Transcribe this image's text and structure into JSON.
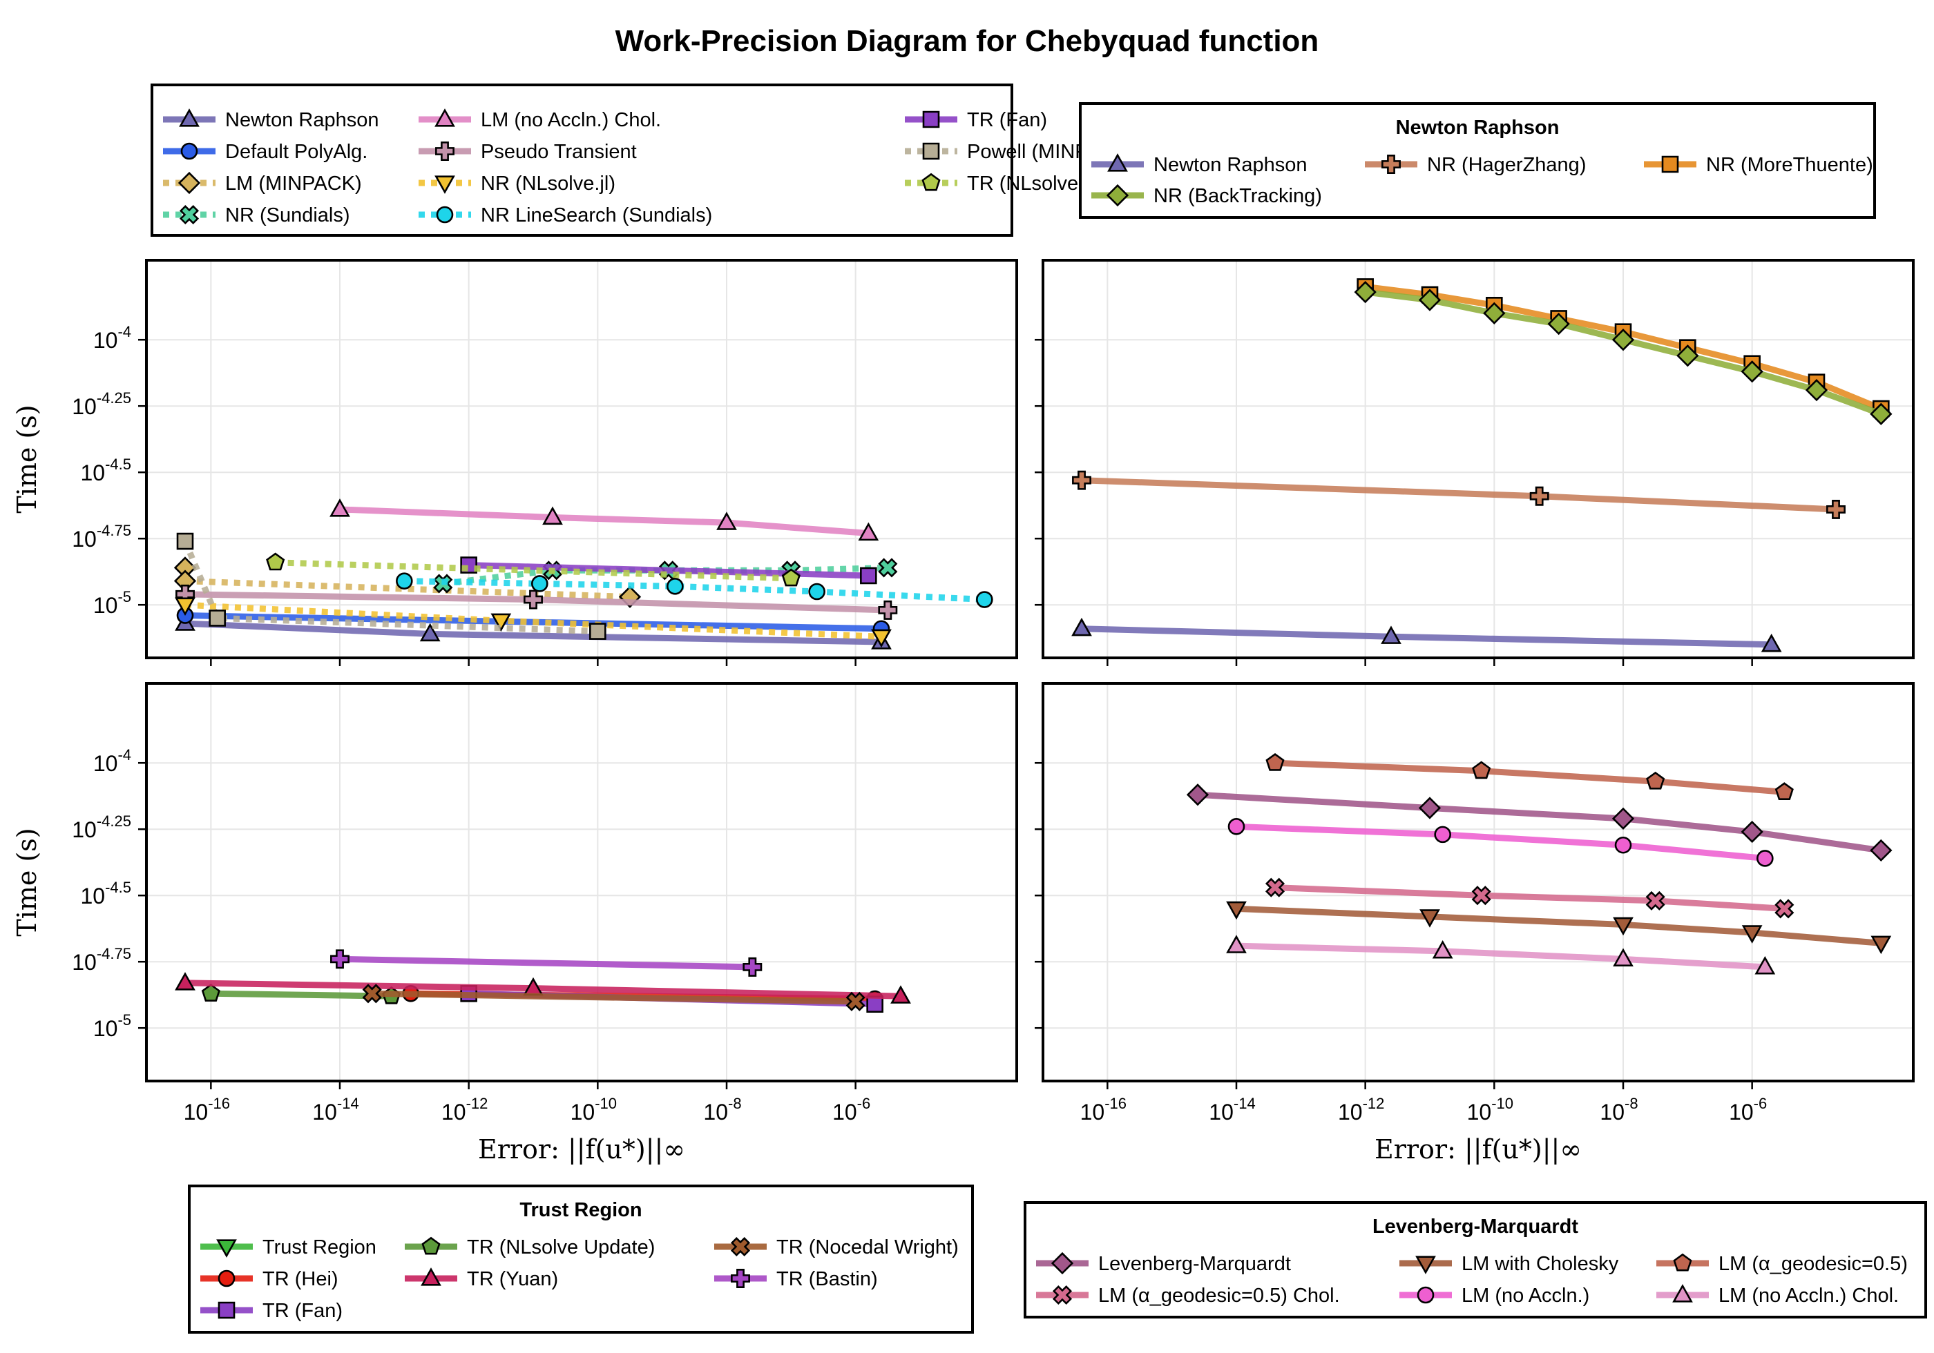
{
  "title": "Work-Precision Diagram for Chebyquad function",
  "axes": {
    "xlabel": "Error: ||f(u*)||∞",
    "ylabel": "Time (s)",
    "xscale": "log10",
    "yscale": "log10",
    "xlim_exp": [
      -17,
      -3.5
    ],
    "ylim_exp": [
      -5.2,
      -3.7
    ],
    "xticks_exp": [
      -16,
      -14,
      -12,
      -10,
      -8,
      -6
    ],
    "yticks_exp": [
      -5,
      -4.75,
      -4.5,
      -4.25,
      -4
    ],
    "xtick_labels": [
      "-16",
      "-14",
      "-12",
      "-10",
      "-8",
      "-6"
    ],
    "ytick_labels": [
      "-5",
      "-4.75",
      "-4.5",
      "-4.25",
      "-4"
    ],
    "grid": true
  },
  "legends": {
    "main": {
      "title": "",
      "entries": [
        "Newton Raphson",
        "Default PolyAlg.",
        "LM (MINPACK)",
        "NR (Sundials)",
        "LM (no Accln.) Chol.",
        "Pseudo Transient",
        "NR (NLsolve.jl)",
        "NR LineSearch (Sundials)",
        "TR (Fan)",
        "Powell (MINPACK)",
        "TR (NLsolve.jl)"
      ]
    },
    "newton": {
      "title": "Newton Raphson",
      "entries": [
        "Newton Raphson",
        "NR (HagerZhang)",
        "NR (MoreThuente)",
        "NR (BackTracking)"
      ]
    },
    "trust": {
      "title": "Trust Region",
      "entries": [
        "Trust Region",
        "TR (NLsolve Update)",
        "TR (Nocedal Wright)",
        "TR (Hei)",
        "TR (Yuan)",
        "TR (Bastin)",
        "TR (Fan)"
      ]
    },
    "lm": {
      "title": "Levenberg-Marquardt",
      "entries": [
        "Levenberg-Marquardt",
        "LM with Cholesky",
        "LM (α_geodesic=0.5)",
        "LM (α_geodesic=0.5) Chol.",
        "LM (no Accln.)",
        "LM (no Accln.) Chol."
      ]
    }
  },
  "chart_data": [
    {
      "type": "line",
      "panel": "top-left",
      "xscale": "log10",
      "yscale": "log10",
      "xlim": [
        "1e-17",
        "3e-4"
      ],
      "ylim": [
        "6.3e-6",
        "2e-4"
      ],
      "series": [
        {
          "name": "Newton Raphson",
          "color": "#6f68b0",
          "style": "solid",
          "marker": "triangle",
          "x_exp": [
            -16.4,
            -12.6,
            -5.6
          ],
          "y_exp": [
            -5.07,
            -5.11,
            -5.14
          ]
        },
        {
          "name": "Default PolyAlg.",
          "color": "#2b5ce6",
          "style": "solid",
          "marker": "circle",
          "x_exp": [
            -16.4,
            -5.6
          ],
          "y_exp": [
            -5.04,
            -5.09
          ]
        },
        {
          "name": "LM (MINPACK)",
          "color": "#d6b35c",
          "style": "dotted",
          "marker": "diamond",
          "x_exp": [
            -16.4,
            -16.4,
            -9.5
          ],
          "y_exp": [
            -4.86,
            -4.91,
            -4.97
          ]
        },
        {
          "name": "NR (Sundials)",
          "color": "#4fcf9d",
          "style": "dotted",
          "marker": "cross",
          "x_exp": [
            -12.4,
            -10.7,
            -8.9,
            -7.0,
            -5.5
          ],
          "y_exp": [
            -4.92,
            -4.87,
            -4.87,
            -4.87,
            -4.86
          ]
        },
        {
          "name": "LM (no Accln.) Chol.",
          "color": "#e183c3",
          "style": "solid",
          "marker": "triangle",
          "x_exp": [
            -14.0,
            -10.7,
            -8.0,
            -5.8
          ],
          "y_exp": [
            -4.64,
            -4.67,
            -4.69,
            -4.73
          ]
        },
        {
          "name": "Pseudo Transient",
          "color": "#c392aa",
          "style": "solid",
          "marker": "plus",
          "x_exp": [
            -16.4,
            -11.0,
            -5.5
          ],
          "y_exp": [
            -4.96,
            -4.98,
            -5.02
          ]
        },
        {
          "name": "NR (NLsolve.jl)",
          "color": "#f2c230",
          "style": "dotted",
          "marker": "inv-triangle",
          "x_exp": [
            -16.4,
            -11.5,
            -5.6
          ],
          "y_exp": [
            -5.0,
            -5.06,
            -5.12
          ]
        },
        {
          "name": "NR LineSearch (Sundials)",
          "color": "#1ed4ea",
          "style": "dotted",
          "marker": "circle",
          "x_exp": [
            -13.0,
            -10.9,
            -8.8,
            -6.6,
            -4.0
          ],
          "y_exp": [
            -4.91,
            -4.92,
            -4.93,
            -4.95,
            -4.98
          ]
        },
        {
          "name": "TR (Fan)",
          "color": "#8a3fc4",
          "style": "solid",
          "marker": "square",
          "x_exp": [
            -12.0,
            -5.8
          ],
          "y_exp": [
            -4.85,
            -4.89
          ]
        },
        {
          "name": "Powell (MINPACK)",
          "color": "#b6ad95",
          "style": "dotted",
          "marker": "square",
          "x_exp": [
            -16.4,
            -15.9,
            -10.0
          ],
          "y_exp": [
            -4.76,
            -5.05,
            -5.1
          ]
        },
        {
          "name": "TR (NLsolve.jl)",
          "color": "#b0c94a",
          "style": "dotted",
          "marker": "pentagon",
          "x_exp": [
            -15.0,
            -7.0
          ],
          "y_exp": [
            -4.84,
            -4.9
          ]
        }
      ]
    },
    {
      "type": "line",
      "panel": "top-right",
      "xscale": "log10",
      "yscale": "log10",
      "xlim": [
        "1e-17",
        "3e-4"
      ],
      "ylim": [
        "6.3e-6",
        "2e-4"
      ],
      "series": [
        {
          "name": "Newton Raphson",
          "color": "#6f68b0",
          "style": "solid",
          "marker": "triangle",
          "x_exp": [
            -16.4,
            -11.6,
            -5.7
          ],
          "y_exp": [
            -5.09,
            -5.12,
            -5.15
          ]
        },
        {
          "name": "NR (HagerZhang)",
          "color": "#c67d5a",
          "style": "solid",
          "marker": "plus",
          "x_exp": [
            -16.4,
            -9.3,
            -4.7
          ],
          "y_exp": [
            -4.53,
            -4.59,
            -4.64
          ]
        },
        {
          "name": "NR (MoreThuente)",
          "color": "#e58a1f",
          "style": "solid",
          "marker": "square",
          "x_exp": [
            -12.0,
            -11.0,
            -10.0,
            -9.0,
            -8.0,
            -7.0,
            -6.0,
            -5.0,
            -4.0
          ],
          "y_exp": [
            -3.8,
            -3.83,
            -3.87,
            -3.92,
            -3.97,
            -4.03,
            -4.09,
            -4.16,
            -4.26
          ]
        },
        {
          "name": "NR (BackTracking)",
          "color": "#8fae3a",
          "style": "solid",
          "marker": "diamond",
          "x_exp": [
            -12.0,
            -11.0,
            -10.0,
            -9.0,
            -8.0,
            -7.0,
            -6.0,
            -5.0,
            -4.0
          ],
          "y_exp": [
            -3.82,
            -3.85,
            -3.9,
            -3.94,
            -4.0,
            -4.06,
            -4.12,
            -4.19,
            -4.28
          ]
        }
      ]
    },
    {
      "type": "line",
      "panel": "bottom-left",
      "xscale": "log10",
      "yscale": "log10",
      "xlim": [
        "1e-17",
        "3e-4"
      ],
      "ylim": [
        "6.3e-6",
        "2e-4"
      ],
      "series": [
        {
          "name": "Trust Region",
          "color": "#3cb83a",
          "style": "solid",
          "marker": "inv-triangle",
          "x_exp": [],
          "y_exp": []
        },
        {
          "name": "TR (Hei)",
          "color": "#e51e10",
          "style": "solid",
          "marker": "circle",
          "x_exp": [
            -12.9,
            -5.7
          ],
          "y_exp": [
            -4.87,
            -4.89
          ]
        },
        {
          "name": "TR (Fan)",
          "color": "#8a3fc4",
          "style": "solid",
          "marker": "square",
          "x_exp": [
            -12.0,
            -5.7
          ],
          "y_exp": [
            -4.87,
            -4.91
          ]
        },
        {
          "name": "TR (NLsolve Update)",
          "color": "#5c9a3a",
          "style": "solid",
          "marker": "pentagon",
          "x_exp": [
            -16.0,
            -13.2
          ],
          "y_exp": [
            -4.87,
            -4.88
          ]
        },
        {
          "name": "TR (Yuan)",
          "color": "#c7215d",
          "style": "solid",
          "marker": "triangle",
          "x_exp": [
            -16.4,
            -11.0,
            -5.3
          ],
          "y_exp": [
            -4.83,
            -4.85,
            -4.88
          ]
        },
        {
          "name": "TR (Nocedal Wright)",
          "color": "#a05a2c",
          "style": "solid",
          "marker": "cross",
          "x_exp": [
            -13.5,
            -6.0
          ],
          "y_exp": [
            -4.87,
            -4.9
          ]
        },
        {
          "name": "TR (Bastin)",
          "color": "#a646c4",
          "style": "solid",
          "marker": "plus",
          "x_exp": [
            -14.0,
            -7.6
          ],
          "y_exp": [
            -4.74,
            -4.77
          ]
        }
      ]
    },
    {
      "type": "line",
      "panel": "bottom-right",
      "xscale": "log10",
      "yscale": "log10",
      "xlim": [
        "1e-17",
        "3e-4"
      ],
      "ylim": [
        "6.3e-6",
        "2e-4"
      ],
      "series": [
        {
          "name": "Levenberg-Marquardt",
          "color": "#a1578a",
          "style": "solid",
          "marker": "diamond",
          "x_exp": [
            -14.6,
            -11.0,
            -8.0,
            -6.0,
            -4.0
          ],
          "y_exp": [
            -4.12,
            -4.17,
            -4.21,
            -4.26,
            -4.33
          ]
        },
        {
          "name": "LM with Cholesky",
          "color": "#a35c3a",
          "style": "solid",
          "marker": "inv-triangle",
          "x_exp": [
            -14.0,
            -11.0,
            -8.0,
            -6.0,
            -4.0
          ],
          "y_exp": [
            -4.55,
            -4.58,
            -4.61,
            -4.64,
            -4.68
          ]
        },
        {
          "name": "LM (α_geodesic=0.5)",
          "color": "#c0654f",
          "style": "solid",
          "marker": "pentagon",
          "x_exp": [
            -13.4,
            -10.2,
            -7.5,
            -5.5
          ],
          "y_exp": [
            -4.0,
            -4.03,
            -4.07,
            -4.11
          ]
        },
        {
          "name": "LM (α_geodesic=0.5) Chol.",
          "color": "#d46a8d",
          "style": "solid",
          "marker": "cross",
          "x_exp": [
            -13.4,
            -10.2,
            -7.5,
            -5.5
          ],
          "y_exp": [
            -4.47,
            -4.5,
            -4.52,
            -4.55
          ]
        },
        {
          "name": "LM (no Accln.)",
          "color": "#ee5fd0",
          "style": "solid",
          "marker": "circle",
          "x_exp": [
            -14.0,
            -10.8,
            -8.0,
            -5.8
          ],
          "y_exp": [
            -4.24,
            -4.27,
            -4.31,
            -4.36
          ]
        },
        {
          "name": "LM (no Accln.) Chol.",
          "color": "#e193c6",
          "style": "solid",
          "marker": "triangle",
          "x_exp": [
            -14.0,
            -10.8,
            -8.0,
            -5.8
          ],
          "y_exp": [
            -4.69,
            -4.71,
            -4.74,
            -4.77
          ]
        }
      ]
    }
  ]
}
